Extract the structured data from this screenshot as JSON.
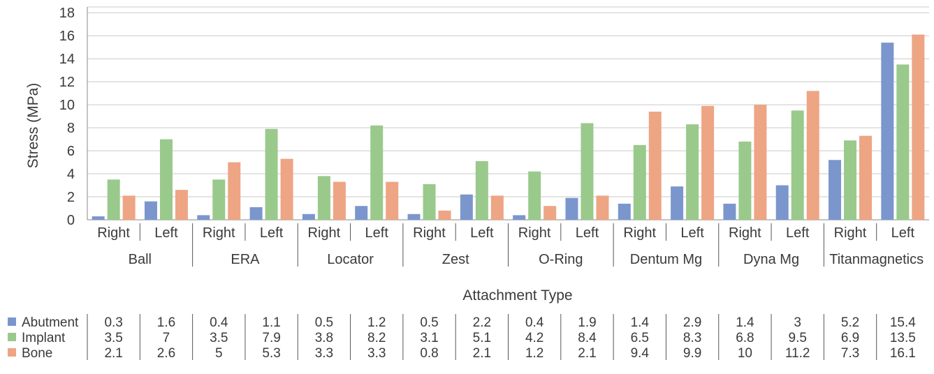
{
  "chart_data": {
    "type": "bar",
    "ylabel": "Stress (MPa)",
    "xlabel": "Attachment Type",
    "ylim": [
      0,
      18
    ],
    "ylim_display_max": 18.5,
    "yticks": [
      0,
      2,
      4,
      6,
      8,
      10,
      12,
      14,
      16,
      18
    ],
    "grid": true,
    "groups": [
      "Ball",
      "ERA",
      "Locator",
      "Zest",
      "O-Ring",
      "Dentum Mg",
      "Dyna Mg",
      "Titanmagnetics"
    ],
    "sides": [
      "Right",
      "Left"
    ],
    "categories": [
      "Ball Right",
      "Ball Left",
      "ERA Right",
      "ERA Left",
      "Locator Right",
      "Locator Left",
      "Zest Right",
      "Zest Left",
      "O-Ring Right",
      "O-Ring Left",
      "Dentum Mg Right",
      "Dentum Mg Left",
      "Dyna Mg Right",
      "Dyna Mg Left",
      "Titanmagnetics Right",
      "Titanmagnetics Left"
    ],
    "series": [
      {
        "name": "Abutment",
        "color": "#7b96cd",
        "values": [
          0.3,
          1.6,
          0.4,
          1.1,
          0.5,
          1.2,
          0.5,
          2.2,
          0.4,
          1.9,
          1.4,
          2.9,
          1.4,
          3,
          5.2,
          15.4
        ],
        "labels": [
          "0.3",
          "1.6",
          "0.4",
          "1.1",
          "0.5",
          "1.2",
          "0.5",
          "2.2",
          "0.4",
          "1.9",
          "1.4",
          "2.9",
          "1.4",
          "3",
          "5.2",
          "15.4"
        ]
      },
      {
        "name": "Implant",
        "color": "#9ac98c",
        "values": [
          3.5,
          7,
          3.5,
          7.9,
          3.8,
          8.2,
          3.1,
          5.1,
          4.2,
          8.4,
          6.5,
          8.3,
          6.8,
          9.5,
          6.9,
          13.5
        ],
        "labels": [
          "3.5",
          "7",
          "3.5",
          "7.9",
          "3.8",
          "8.2",
          "3.1",
          "5.1",
          "4.2",
          "8.4",
          "6.5",
          "8.3",
          "6.8",
          "9.5",
          "6.9",
          "13.5"
        ]
      },
      {
        "name": "Bone",
        "color": "#eda584",
        "values": [
          2.1,
          2.6,
          5,
          5.3,
          3.3,
          3.3,
          0.8,
          2.1,
          1.2,
          2.1,
          9.4,
          9.9,
          10,
          11.2,
          7.3,
          16.1
        ],
        "labels": [
          "2.1",
          "2.6",
          "5",
          "5.3",
          "3.3",
          "3.3",
          "0.8",
          "2.1",
          "1.2",
          "2.1",
          "9.4",
          "9.9",
          "10",
          "11.2",
          "7.3",
          "16.1"
        ]
      }
    ]
  }
}
